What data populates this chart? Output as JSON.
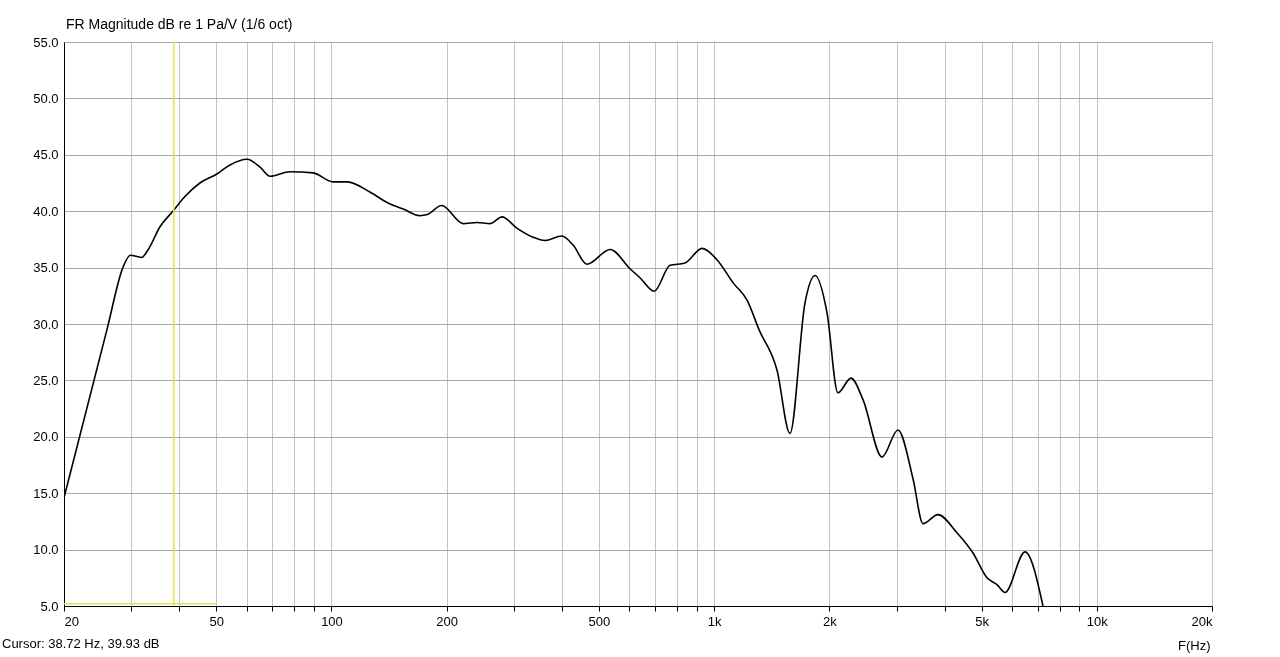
{
  "chart_data": {
    "type": "line",
    "title": "FR Magnitude dB re 1 Pa/V (1/6 oct)",
    "xlabel": "F(Hz)",
    "annotations": [
      "Cursor: 38.72 Hz, 39.93 dB"
    ],
    "log": "x",
    "grid": true,
    "marker": "none",
    "line_style": "solid",
    "xlim": [
      20,
      20000
    ],
    "ylim": [
      5,
      55
    ],
    "xticks": [
      20,
      {
        "value": 30,
        "label": null
      },
      {
        "value": 40,
        "label": null
      },
      50,
      {
        "value": 60,
        "label": null
      },
      {
        "value": 70,
        "label": null
      },
      {
        "value": 80,
        "label": null
      },
      {
        "value": 90,
        "label": null
      },
      100,
      200,
      {
        "value": 300,
        "label": null
      },
      {
        "value": 400,
        "label": null
      },
      500,
      {
        "value": 600,
        "label": null
      },
      {
        "value": 700,
        "label": null
      },
      {
        "value": 800,
        "label": null
      },
      {
        "value": 900,
        "label": null
      },
      {
        "value": 1000,
        "label": "1k"
      },
      {
        "value": 2000,
        "label": "2k"
      },
      {
        "value": 3000,
        "label": null
      },
      {
        "value": 4000,
        "label": null
      },
      {
        "value": 5000,
        "label": "5k"
      },
      {
        "value": 6000,
        "label": null
      },
      {
        "value": 7000,
        "label": null
      },
      {
        "value": 8000,
        "label": null
      },
      {
        "value": 9000,
        "label": null
      },
      {
        "value": 10000,
        "label": "10k"
      },
      {
        "value": 20000,
        "label": "20k"
      }
    ],
    "yticks": [
      {
        "value": 5,
        "label": "5.0"
      },
      {
        "value": 10,
        "label": "10.0"
      },
      {
        "value": 15,
        "label": "15.0"
      },
      {
        "value": 20,
        "label": "20.0"
      },
      {
        "value": 25,
        "label": "25.0"
      },
      {
        "value": 30,
        "label": "30.0"
      },
      {
        "value": 35,
        "label": "35.0"
      },
      {
        "value": 40,
        "label": "40.0"
      },
      {
        "value": 45,
        "label": "45.0"
      },
      {
        "value": 50,
        "label": "50.0"
      },
      {
        "value": 55,
        "label": "55.0"
      }
    ],
    "ref_lines": [
      {
        "axis": "x",
        "value": 38.72,
        "color": "#e4e44a"
      }
    ],
    "series": [
      {
        "color": "#000000",
        "x": [
          20,
          25.9,
          28.5,
          29.8,
          31.9,
          33.2,
          35.6,
          38.5,
          41.4,
          45.3,
          50.2,
          54.3,
          60.2,
          65.1,
          69.1,
          77.9,
          89.5,
          101,
          110,
          126,
          141,
          154,
          170,
          178,
          194,
          221,
          240,
          260,
          279,
          305,
          336,
          361,
          400,
          428,
          465,
          535,
          603,
          640,
          697,
          767,
          839,
          930,
          1017,
          1124,
          1220,
          1310,
          1460,
          1578,
          1728,
          1835,
          1972,
          2106,
          2278,
          2449,
          2746,
          3022,
          3308,
          3514,
          3844,
          4311,
          4748,
          5164,
          5484,
          5754,
          6492,
          7234
        ],
        "values": [
          14.6,
          29.5,
          35.0,
          36.1,
          35.9,
          36.6,
          38.6,
          40.0,
          41.3,
          42.5,
          43.3,
          44.1,
          44.6,
          43.9,
          43.1,
          43.5,
          43.4,
          42.6,
          42.6,
          41.7,
          40.7,
          40.2,
          39.6,
          39.7,
          40.5,
          38.9,
          39.0,
          38.9,
          39.5,
          38.5,
          37.7,
          37.4,
          37.8,
          37.0,
          35.3,
          36.6,
          34.9,
          34.1,
          32.9,
          35.2,
          35.4,
          36.7,
          35.7,
          33.6,
          32.1,
          29.5,
          25.9,
          20.3,
          31.9,
          34.3,
          31.0,
          23.9,
          25.2,
          23.3,
          18.2,
          20.6,
          16.3,
          12.3,
          13.1,
          11.5,
          9.7,
          7.5,
          6.9,
          6.2,
          9.8,
          5.0
        ]
      },
      {
        "color": "#e4e44a",
        "x": [
          20,
          50
        ],
        "values": [
          5.2,
          5.2
        ]
      }
    ]
  }
}
